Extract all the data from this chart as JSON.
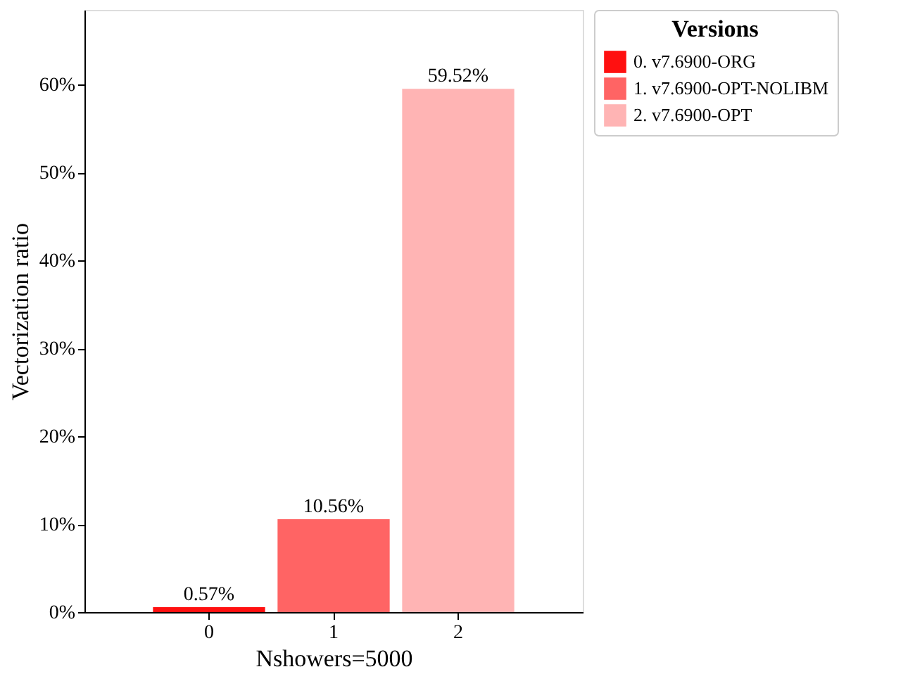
{
  "chart_data": {
    "type": "bar",
    "xlabel": "Nshowers=5000",
    "ylabel": "Vectorization ratio",
    "legend_title": "Versions",
    "categories": [
      "0",
      "1",
      "2"
    ],
    "series": [
      {
        "name": "0. v7.6900-ORG",
        "color": "#ff1010",
        "values": [
          0.57,
          null,
          null
        ],
        "value_labels": [
          "0.57%",
          null,
          null
        ]
      },
      {
        "name": "1. v7.6900-OPT-NOLIBM",
        "color": "#ff6464",
        "values": [
          null,
          10.56,
          null
        ],
        "value_labels": [
          null,
          "10.56%",
          null
        ]
      },
      {
        "name": "2. v7.6900-OPT",
        "color": "#ffb4b4",
        "values": [
          null,
          null,
          59.52
        ],
        "value_labels": [
          null,
          null,
          "59.52%"
        ]
      }
    ],
    "ylim": [
      0,
      68.5
    ],
    "yticks": [
      {
        "value": 0,
        "label": "0%"
      },
      {
        "value": 10,
        "label": "10%"
      },
      {
        "value": 20,
        "label": "20%"
      },
      {
        "value": 30,
        "label": "30%"
      },
      {
        "value": 40,
        "label": "40%"
      },
      {
        "value": 50,
        "label": "50%"
      },
      {
        "value": 60,
        "label": "60%"
      }
    ],
    "grid": false,
    "legend": "right"
  }
}
